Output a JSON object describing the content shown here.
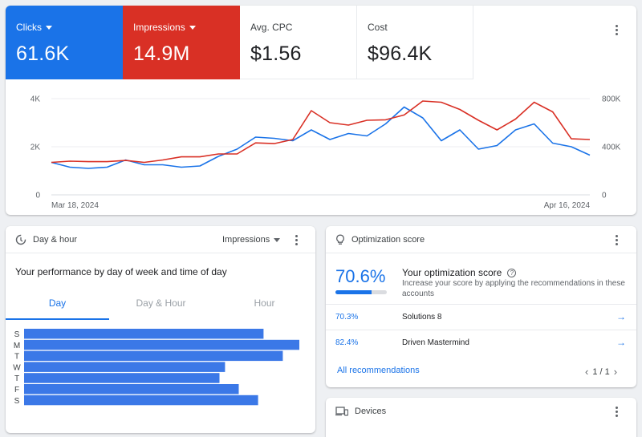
{
  "overview": {
    "metrics": [
      {
        "label": "Clicks",
        "value": "61.6K",
        "color": "#1a73e8",
        "dropdown": true
      },
      {
        "label": "Impressions",
        "value": "14.9M",
        "color": "#d93025",
        "dropdown": true
      },
      {
        "label": "Avg. CPC",
        "value": "$1.56"
      },
      {
        "label": "Cost",
        "value": "$96.4K"
      }
    ],
    "menu_icon": "more-vert-icon"
  },
  "chart_data": {
    "type": "line",
    "x": [
      "Mar 18, 2024",
      "Mar 19, 2024",
      "Mar 20, 2024",
      "Mar 21, 2024",
      "Mar 22, 2024",
      "Mar 23, 2024",
      "Mar 24, 2024",
      "Mar 25, 2024",
      "Mar 26, 2024",
      "Mar 27, 2024",
      "Mar 28, 2024",
      "Mar 29, 2024",
      "Mar 30, 2024",
      "Mar 31, 2024",
      "Apr 1, 2024",
      "Apr 2, 2024",
      "Apr 3, 2024",
      "Apr 4, 2024",
      "Apr 5, 2024",
      "Apr 6, 2024",
      "Apr 7, 2024",
      "Apr 8, 2024",
      "Apr 9, 2024",
      "Apr 10, 2024",
      "Apr 11, 2024",
      "Apr 12, 2024",
      "Apr 13, 2024",
      "Apr 14, 2024",
      "Apr 15, 2024",
      "Apr 16, 2024"
    ],
    "x_tick_labels": [
      "Mar 18, 2024",
      "Apr 16, 2024"
    ],
    "y_left": {
      "ticks": [
        "4K",
        "2K",
        "0"
      ],
      "range": [
        0,
        4000
      ]
    },
    "y_right": {
      "ticks": [
        "800K",
        "400K",
        "0"
      ],
      "range": [
        0,
        800000
      ]
    },
    "series": [
      {
        "name": "Clicks",
        "axis": "left",
        "color": "#1a73e8",
        "values": [
          1350,
          1150,
          1100,
          1150,
          1450,
          1250,
          1250,
          1150,
          1200,
          1600,
          1900,
          2400,
          2350,
          2250,
          2700,
          2300,
          2550,
          2450,
          2950,
          3650,
          3200,
          2250,
          2700,
          1900,
          2050,
          2700,
          2950,
          2150,
          2000,
          1650
        ]
      },
      {
        "name": "Impressions",
        "axis": "right",
        "color": "#d93025",
        "values": [
          270000,
          280000,
          276000,
          276000,
          286000,
          270000,
          290000,
          316000,
          316000,
          340000,
          340000,
          432000,
          426000,
          460000,
          700000,
          600000,
          580000,
          620000,
          624000,
          664000,
          780000,
          770000,
          710000,
          620000,
          540000,
          630000,
          770000,
          690000,
          466000,
          460000
        ]
      }
    ],
    "grid": true
  },
  "dayhour": {
    "title": "Day & hour",
    "icon": "clock-icon",
    "dropdown_label": "Impressions",
    "subtitle": "Your performance by day of week and time of day",
    "tabs": [
      "Day",
      "Day & Hour",
      "Hour"
    ],
    "active_tab": 0,
    "days": [
      "S",
      "M",
      "T",
      "W",
      "T",
      "F",
      "S"
    ],
    "day_values": [
      0.87,
      1.0,
      0.94,
      0.73,
      0.71,
      0.78,
      0.85
    ],
    "bar_color": "#3b78e7"
  },
  "optimization": {
    "title": "Optimization score",
    "icon": "lightbulb-icon",
    "score": "70.6%",
    "score_fraction": 0.706,
    "heading": "Your optimization score",
    "description": "Increase your score by applying the recommendations in these accounts",
    "accounts": [
      {
        "pct": "70.3%",
        "name": "Solutions 8"
      },
      {
        "pct": "82.4%",
        "name": "Driven Mastermind"
      }
    ],
    "all_link": "All recommendations",
    "pager": "1 / 1"
  },
  "devices": {
    "title": "Devices",
    "icon": "devices-icon"
  }
}
